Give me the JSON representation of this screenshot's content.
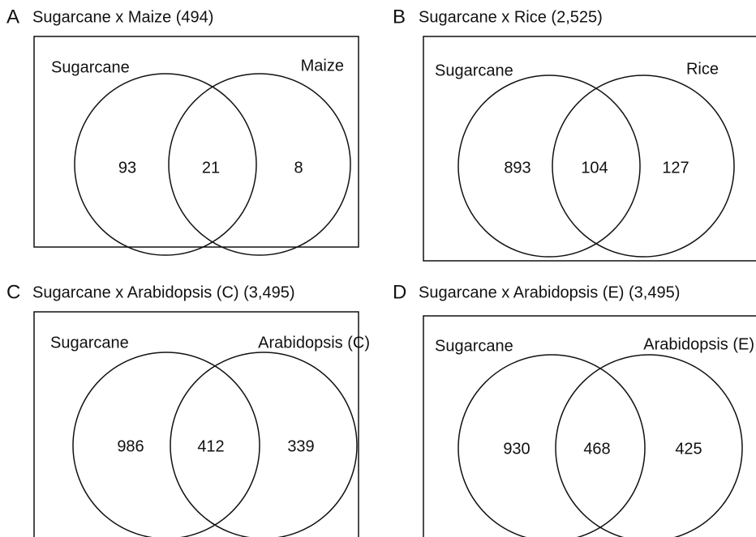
{
  "panels": [
    {
      "letter": "A",
      "title": "Sugarcane x Maize (494)",
      "left_label": "Sugarcane",
      "right_label": "Maize",
      "left": "93",
      "both": "21",
      "right": "8"
    },
    {
      "letter": "B",
      "title": "Sugarcane x Rice (2,525)",
      "left_label": "Sugarcane",
      "right_label": "Rice",
      "left": "893",
      "both": "104",
      "right": "127"
    },
    {
      "letter": "C",
      "title": "Sugarcane x Arabidopsis (C) (3,495)",
      "left_label": "Sugarcane",
      "right_label": "Arabidopsis (C)",
      "left": "986",
      "both": "412",
      "right": "339"
    },
    {
      "letter": "D",
      "title": "Sugarcane x Arabidopsis (E) (3,495)",
      "left_label": "Sugarcane",
      "right_label": "Arabidopsis (E)",
      "left": "930",
      "both": "468",
      "right": "425"
    }
  ]
}
